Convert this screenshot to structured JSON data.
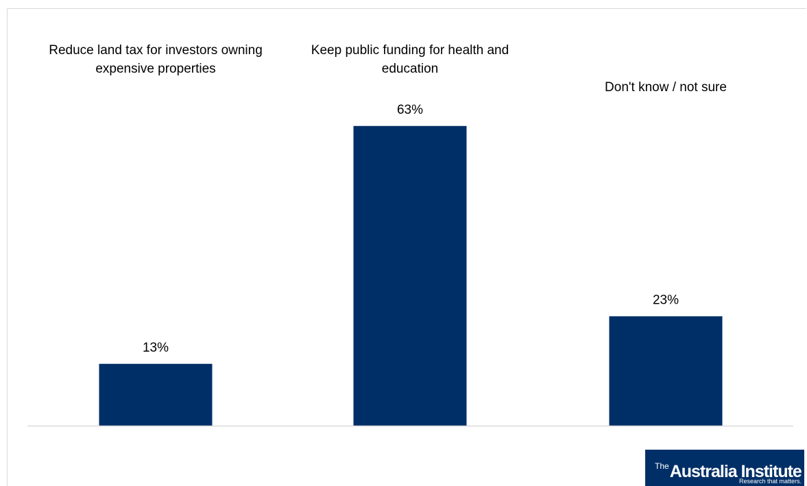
{
  "chart_data": {
    "type": "bar",
    "categories": [
      [
        "Reduce land tax for investors owning",
        "expensive properties"
      ],
      [
        "Keep public funding for health and",
        "education"
      ],
      [
        "Don't know / not sure"
      ]
    ],
    "values": [
      13,
      63,
      23
    ],
    "value_labels": [
      "13%",
      "63%",
      "23%"
    ],
    "ylim": [
      0,
      70
    ],
    "grid": false,
    "legend": "none",
    "title": "",
    "xlabel": "",
    "ylabel": "",
    "colors": {
      "bar": "#002f67",
      "axis": "#d9d9d9",
      "text": "#000000"
    }
  },
  "logo": {
    "prefix": "The",
    "name": "Australia Institute",
    "tagline": "Research that matters."
  }
}
